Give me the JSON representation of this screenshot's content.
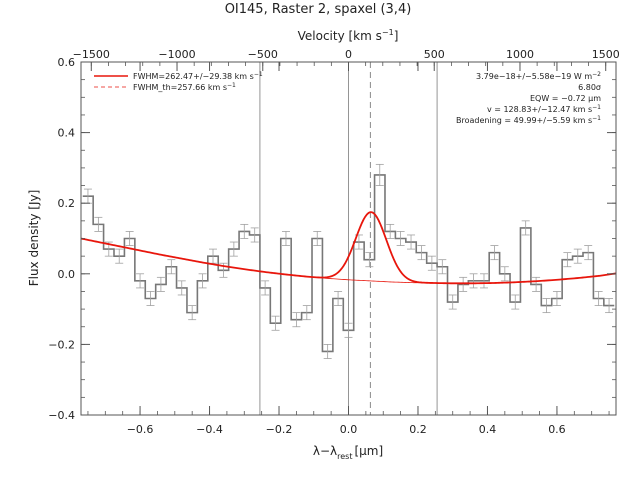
{
  "chart_data": {
    "type": "line",
    "title": "OI145, Raster 2, spaxel (3,4)",
    "xlabel": "λ−λ",
    "xlabel_sub": "rest",
    "xlabel_unit": "[μm]",
    "ylabel": "Flux density [Jy]",
    "top_axis_label": "Velocity [km s",
    "top_axis_label_sup": "−1",
    "top_axis_label_end": "]",
    "xlim": [
      -0.77,
      0.77
    ],
    "ylim": [
      -0.4,
      0.6
    ],
    "top_xlim": [
      -1560,
      1560
    ],
    "x_ticks": [
      -0.6,
      -0.4,
      -0.2,
      0.0,
      0.2,
      0.4,
      0.6
    ],
    "x_tick_labels": [
      "−0.6",
      "−0.4",
      "−0.2",
      "0.0",
      "0.2",
      "0.4",
      "0.6"
    ],
    "y_ticks": [
      -0.4,
      -0.2,
      0.0,
      0.2,
      0.4,
      0.6
    ],
    "y_tick_labels": [
      "−0.4",
      "−0.2",
      "0.0",
      "0.2",
      "0.4",
      "0.6"
    ],
    "top_ticks": [
      -1500,
      -1000,
      -500,
      0,
      500,
      1000,
      1500
    ],
    "top_tick_labels": [
      "−1500",
      "−1000",
      "−500",
      "0",
      "500",
      "1000",
      "1500"
    ],
    "grid": false,
    "legend_position": "top-left",
    "legend": [
      {
        "label": "FWHM=262.47+/−29.38 km s",
        "sup": "−1",
        "style": "solid"
      },
      {
        "label": "FWHM_th=257.66 km s",
        "sup": "−1",
        "style": "dashed"
      }
    ],
    "annotations": [
      {
        "text": "3.79e−18+/−5.58e−19 W m",
        "sup": "−2"
      },
      {
        "text": "6.80σ",
        "sup": ""
      },
      {
        "text": "EQW = −0.72 μm",
        "sup": ""
      },
      {
        "text": "v = 128.83+/−12.47 km s",
        "sup": "−1"
      },
      {
        "text": "Broadening = 49.99+/−5.59 km s",
        "sup": "−1"
      }
    ],
    "vertical_lines": [
      {
        "x": -0.255,
        "style": "solid"
      },
      {
        "x": 0.0,
        "style": "solid"
      },
      {
        "x": 0.255,
        "style": "solid"
      },
      {
        "x": 0.063,
        "style": "dashed"
      }
    ],
    "bin_width": 0.03,
    "series": [
      {
        "type": "step",
        "x": [
          -0.75,
          -0.72,
          -0.69,
          -0.66,
          -0.63,
          -0.6,
          -0.57,
          -0.54,
          -0.51,
          -0.48,
          -0.45,
          -0.42,
          -0.39,
          -0.36,
          -0.33,
          -0.3,
          -0.27,
          -0.24,
          -0.21,
          -0.18,
          -0.15,
          -0.12,
          -0.09,
          -0.06,
          -0.03,
          0.0,
          0.03,
          0.06,
          0.09,
          0.12,
          0.15,
          0.18,
          0.21,
          0.24,
          0.27,
          0.3,
          0.33,
          0.36,
          0.39,
          0.42,
          0.45,
          0.48,
          0.51,
          0.54,
          0.57,
          0.6,
          0.63,
          0.66,
          0.69,
          0.72,
          0.75
        ],
        "y": [
          0.22,
          0.14,
          0.07,
          0.05,
          0.1,
          -0.02,
          -0.07,
          -0.03,
          0.02,
          -0.04,
          -0.11,
          -0.02,
          0.05,
          0.01,
          0.07,
          0.12,
          0.11,
          -0.04,
          -0.14,
          0.1,
          -0.13,
          -0.11,
          0.1,
          -0.22,
          -0.07,
          -0.16,
          0.09,
          0.04,
          0.28,
          0.12,
          0.1,
          0.09,
          0.06,
          0.03,
          0.02,
          -0.08,
          -0.03,
          -0.02,
          -0.02,
          0.06,
          0.0,
          -0.08,
          0.13,
          -0.03,
          -0.09,
          -0.07,
          0.04,
          0.05,
          0.06,
          -0.07,
          -0.09
        ],
        "err": [
          0.02,
          0.02,
          0.02,
          0.02,
          0.02,
          0.02,
          0.02,
          0.02,
          0.02,
          0.02,
          0.02,
          0.02,
          0.02,
          0.02,
          0.02,
          0.02,
          0.02,
          0.02,
          0.02,
          0.02,
          0.02,
          0.02,
          0.02,
          0.02,
          0.02,
          0.02,
          0.02,
          0.02,
          0.03,
          0.02,
          0.02,
          0.02,
          0.02,
          0.02,
          0.02,
          0.02,
          0.02,
          0.02,
          0.02,
          0.02,
          0.02,
          0.02,
          0.02,
          0.02,
          0.02,
          0.02,
          0.02,
          0.02,
          0.02,
          0.02,
          0.02
        ],
        "color": "#777777"
      },
      {
        "type": "fit",
        "baseline": [
          0.1,
          0.09,
          0.078,
          0.066,
          0.054,
          0.043,
          0.032,
          0.022,
          0.013,
          0.005,
          -0.002,
          -0.008,
          -0.013,
          -0.017,
          -0.02,
          -0.023,
          -0.025,
          -0.026,
          -0.027,
          -0.027,
          -0.026,
          -0.024,
          -0.021,
          -0.017,
          -0.012,
          -0.006,
          0.001,
          0.009,
          0.018
        ],
        "baseline_x": [
          -0.77,
          -0.72,
          -0.66,
          -0.6,
          -0.54,
          -0.48,
          -0.42,
          -0.36,
          -0.3,
          -0.24,
          -0.18,
          -0.12,
          -0.06,
          0.0,
          0.06,
          0.12,
          0.18,
          0.24,
          0.3,
          0.36,
          0.42,
          0.48,
          0.54,
          0.6,
          0.66,
          0.72,
          0.77,
          0.8,
          0.83
        ],
        "gaussian_center": 0.065,
        "gaussian_amplitude": 0.195,
        "gaussian_sigma": 0.044,
        "color": "#e8160c"
      }
    ]
  }
}
